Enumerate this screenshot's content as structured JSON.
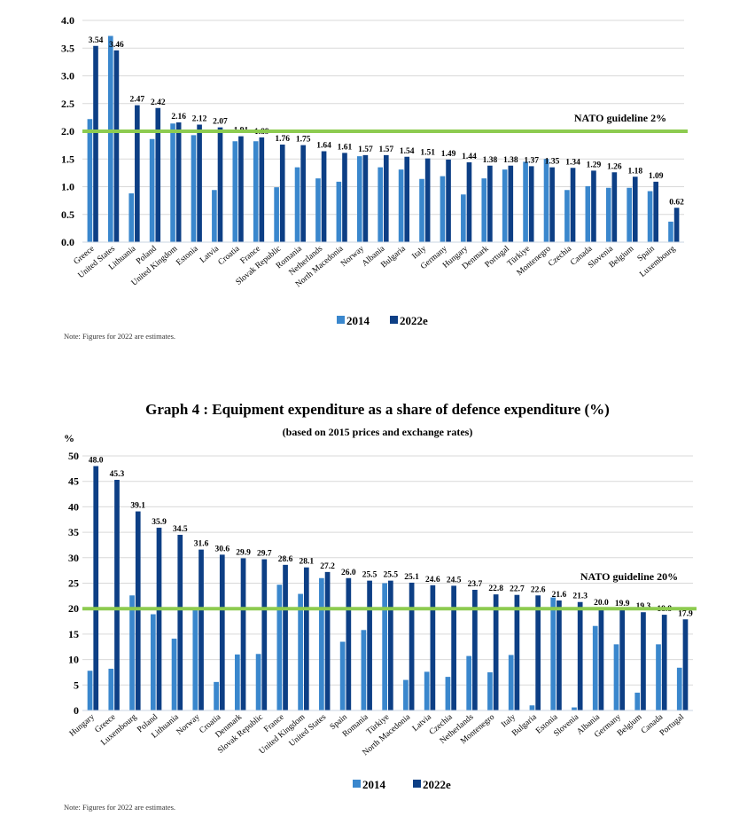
{
  "colors": {
    "y2014": "#3a87cd",
    "y2022": "#0d3f85",
    "guideline": "#8dcb50",
    "grid": "#d9d9d9"
  },
  "chart_data": [
    {
      "type": "bar",
      "title": "",
      "xlabel": "",
      "ylabel": "",
      "ylim": [
        0,
        4.0
      ],
      "yticks": [
        "0.0",
        "0.5",
        "1.0",
        "1.5",
        "2.0",
        "2.5",
        "3.0",
        "3.5",
        "4.0"
      ],
      "grid": true,
      "legend_position": "bottom",
      "guideline": {
        "value": 2.0,
        "label": "NATO guideline 2%"
      },
      "categories": [
        "Greece",
        "United States",
        "Lithuania",
        "Poland",
        "United Kingdom",
        "Estonia",
        "Latvia",
        "Croatia",
        "France",
        "Slovak Republic",
        "Romania",
        "Netherlands",
        "North Macedonia",
        "Norway",
        "Albania",
        "Bulgaria",
        "Italy",
        "Germany",
        "Hungary",
        "Denmark",
        "Portugal",
        "Türkiye",
        "Montenegro",
        "Czechia",
        "Canada",
        "Slovenia",
        "Belgium",
        "Spain",
        "Luxembourg"
      ],
      "series": [
        {
          "name": "2014",
          "values": [
            2.22,
            3.72,
            0.88,
            1.86,
            2.14,
            1.93,
            0.94,
            1.82,
            1.82,
            0.99,
            1.35,
            1.15,
            1.09,
            1.55,
            1.35,
            1.31,
            1.14,
            1.19,
            0.86,
            1.15,
            1.31,
            1.45,
            1.5,
            0.94,
            1.01,
            0.98,
            0.98,
            0.92,
            0.37
          ]
        },
        {
          "name": "2022e",
          "values": [
            3.54,
            3.46,
            2.47,
            2.42,
            2.16,
            2.12,
            2.07,
            1.91,
            1.89,
            1.76,
            1.75,
            1.64,
            1.61,
            1.57,
            1.57,
            1.54,
            1.51,
            1.49,
            1.44,
            1.38,
            1.38,
            1.37,
            1.35,
            1.34,
            1.29,
            1.26,
            1.18,
            1.09,
            0.62
          ],
          "labels": [
            "3.54",
            "3.46",
            "2.47",
            "2.42",
            "2.16",
            "2.12",
            "2.07",
            "1.91",
            "1.89",
            "1.76",
            "1.75",
            "1.64",
            "1.61",
            "1.57",
            "1.57",
            "1.54",
            "1.51",
            "1.49",
            "1.44",
            "1.38",
            "1.38",
            "1.37",
            "1.35",
            "1.34",
            "1.29",
            "1.26",
            "1.18",
            "1.09",
            "0.62"
          ]
        }
      ],
      "note": "Note: Figures for 2022 are estimates."
    },
    {
      "type": "bar",
      "title": "Graph 4 : Equipment expenditure as a share of defence expenditure (%)",
      "subtitle": "(based on 2015 prices and exchange rates)",
      "xlabel": "",
      "ylabel": "%",
      "ylim": [
        0,
        50
      ],
      "yticks": [
        "0",
        "5",
        "10",
        "15",
        "20",
        "25",
        "30",
        "35",
        "40",
        "45",
        "50"
      ],
      "grid": true,
      "legend_position": "bottom",
      "guideline": {
        "value": 20,
        "label": "NATO guideline 20%"
      },
      "categories": [
        "Hungary",
        "Greece",
        "Luxembourg",
        "Poland",
        "Lithuania",
        "Norway",
        "Croatia",
        "Denmark",
        "Slovak Republic",
        "France",
        "United Kingdom",
        "United States",
        "Spain",
        "Romania",
        "Türkiye",
        "North Macedonia",
        "Latvia",
        "Czechia",
        "Netherlands",
        "Montenegro",
        "Italy",
        "Bulgaria",
        "Estonia",
        "Slovenia",
        "Albania",
        "Germany",
        "Belgium",
        "Canada",
        "Portugal"
      ],
      "series": [
        {
          "name": "2014",
          "values": [
            7.8,
            8.2,
            22.6,
            18.9,
            14.1,
            20.0,
            5.6,
            11.0,
            11.1,
            24.7,
            22.9,
            26.0,
            13.5,
            15.8,
            25.0,
            6.0,
            7.6,
            6.6,
            10.7,
            7.5,
            10.9,
            1.0,
            22.2,
            0.6,
            16.6,
            13.0,
            3.5,
            13.0,
            8.4
          ]
        },
        {
          "name": "2022e",
          "values": [
            48.0,
            45.3,
            39.1,
            35.9,
            34.5,
            31.6,
            30.6,
            29.9,
            29.7,
            28.6,
            28.1,
            27.2,
            26.0,
            25.5,
            25.5,
            25.1,
            24.6,
            24.5,
            23.7,
            22.8,
            22.7,
            22.6,
            21.6,
            21.3,
            20.0,
            19.9,
            19.3,
            18.8,
            17.9
          ],
          "labels": [
            "48.0",
            "45.3",
            "39.1",
            "35.9",
            "34.5",
            "31.6",
            "30.6",
            "29.9",
            "29.7",
            "28.6",
            "28.1",
            "27.2",
            "26.0",
            "25.5",
            "25.5",
            "25.1",
            "24.6",
            "24.5",
            "23.7",
            "22.8",
            "22.7",
            "22.6",
            "21.6",
            "21.3",
            "20.0",
            "19.9",
            "19.3",
            "18.8",
            "17.9"
          ]
        }
      ],
      "note": "Note: Figures for 2022 are estimates."
    }
  ]
}
